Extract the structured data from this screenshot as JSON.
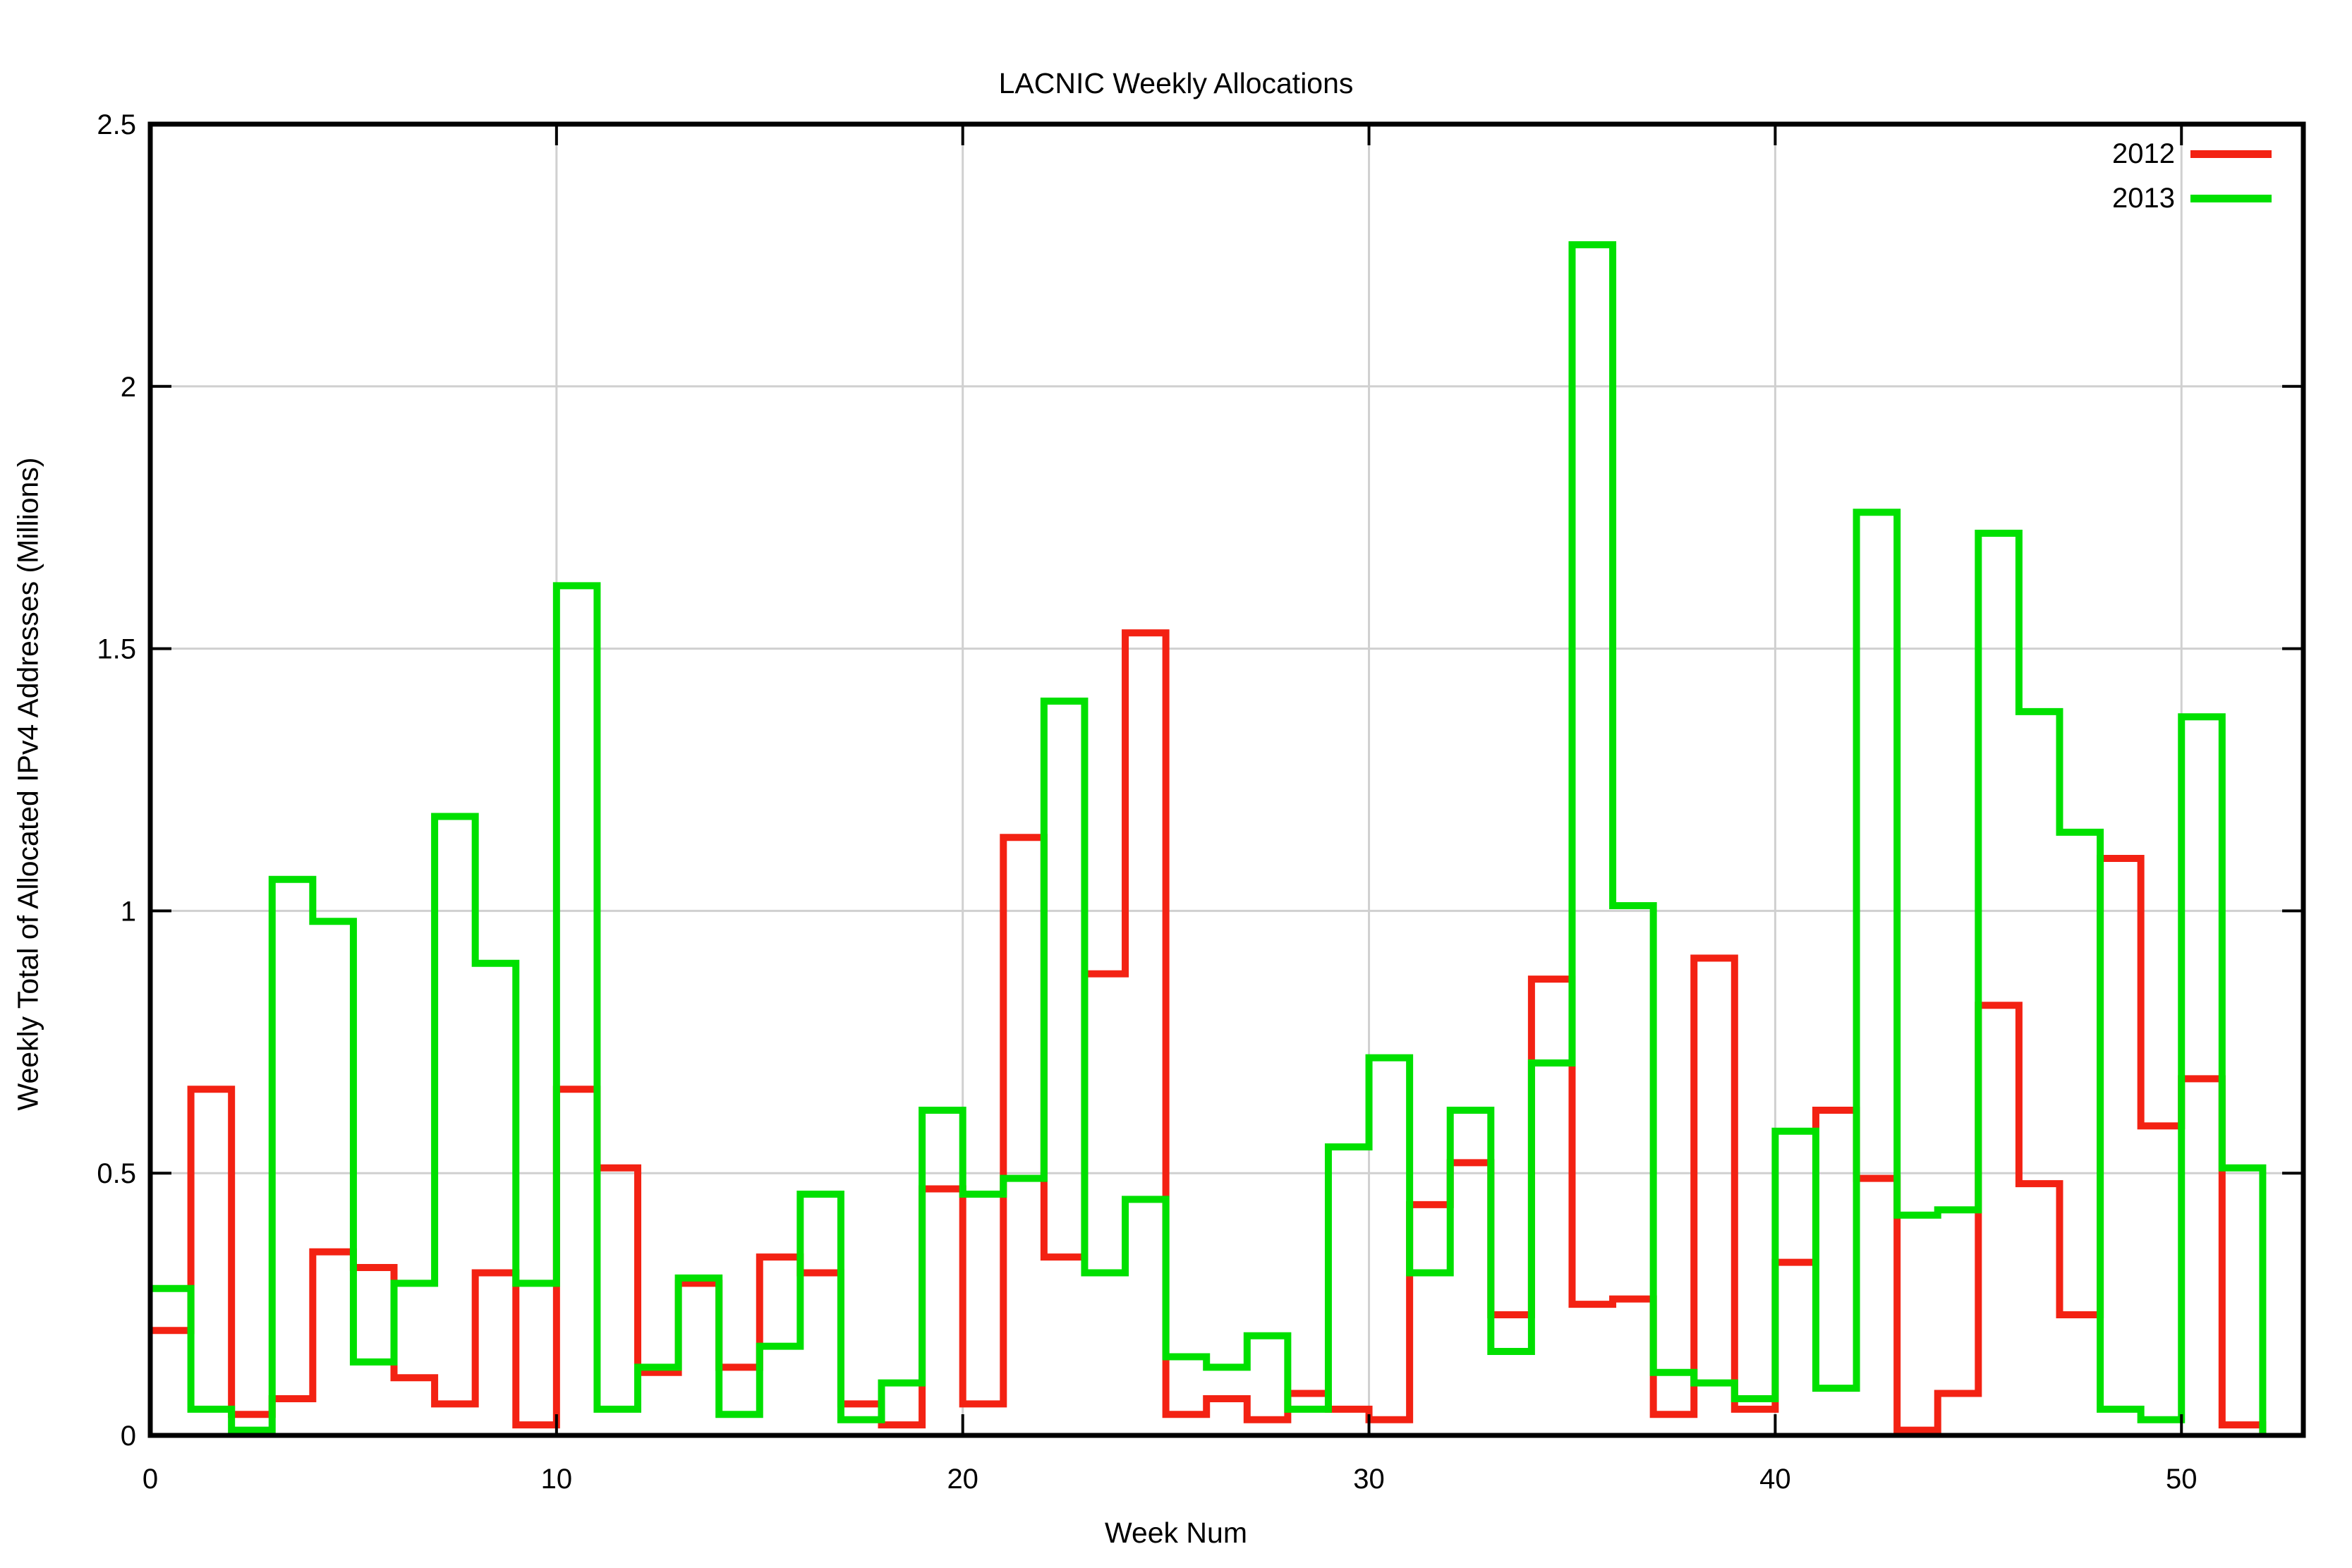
{
  "chart_data": {
    "type": "line",
    "line_style": "histeps",
    "title": "LACNIC Weekly Allocations",
    "xlabel": "Week Num",
    "ylabel": "Weekly Total of Allocated IPv4 Addresses (Millions)",
    "xlim": [
      0,
      53
    ],
    "ylim": [
      0,
      2.5
    ],
    "x_ticks": [
      0,
      10,
      20,
      30,
      40,
      50
    ],
    "x_tick_labels": [
      "0",
      "10",
      "20",
      "30",
      "40",
      "50"
    ],
    "y_ticks": [
      0,
      0.5,
      1,
      1.5,
      2,
      2.5
    ],
    "y_tick_labels": [
      "0",
      "0.5",
      "1",
      "1.5",
      "2",
      "2.5"
    ],
    "grid": true,
    "legend_position": "top-right",
    "weeks": [
      1,
      2,
      3,
      4,
      5,
      6,
      7,
      8,
      9,
      10,
      11,
      12,
      13,
      14,
      15,
      16,
      17,
      18,
      19,
      20,
      21,
      22,
      23,
      24,
      25,
      26,
      27,
      28,
      29,
      30,
      31,
      32,
      33,
      34,
      35,
      36,
      37,
      38,
      39,
      40,
      41,
      42,
      43,
      44,
      45,
      46,
      47,
      48,
      49,
      50,
      51,
      52
    ],
    "series": [
      {
        "name": "2012",
        "color": "#f32213",
        "values": [
          0.2,
          0.66,
          0.04,
          0.07,
          0.35,
          0.32,
          0.11,
          0.06,
          0.31,
          0.02,
          0.66,
          0.51,
          0.12,
          0.29,
          0.13,
          0.34,
          0.31,
          0.06,
          0.02,
          0.47,
          0.06,
          1.14,
          0.34,
          0.88,
          1.53,
          0.04,
          0.07,
          0.03,
          0.08,
          0.05,
          0.03,
          0.44,
          0.52,
          0.23,
          0.87,
          0.25,
          0.26,
          0.04,
          0.91,
          0.05,
          0.33,
          0.62,
          0.49,
          0.01,
          0.08,
          0.82,
          0.48,
          0.23,
          1.1,
          0.59,
          0.68,
          0.02
        ]
      },
      {
        "name": "2013",
        "color": "#00e000",
        "values": [
          0.28,
          0.05,
          0.01,
          1.06,
          0.98,
          0.14,
          0.29,
          1.18,
          0.9,
          0.29,
          1.62,
          0.05,
          0.13,
          0.3,
          0.04,
          0.17,
          0.46,
          0.03,
          0.1,
          0.62,
          0.46,
          0.49,
          1.4,
          0.31,
          0.45,
          0.15,
          0.13,
          0.19,
          0.05,
          0.55,
          0.72,
          0.31,
          0.62,
          0.16,
          0.71,
          2.27,
          1.01,
          0.12,
          0.1,
          0.07,
          0.58,
          0.09,
          1.76,
          0.42,
          0.43,
          1.72,
          1.38,
          1.15,
          0.05,
          0.03,
          1.37,
          0.51
        ]
      }
    ],
    "colors": {
      "background": "#ffffff",
      "axis": "#000000",
      "grid": "#d0d0d0",
      "tick_text": "#000000"
    }
  }
}
